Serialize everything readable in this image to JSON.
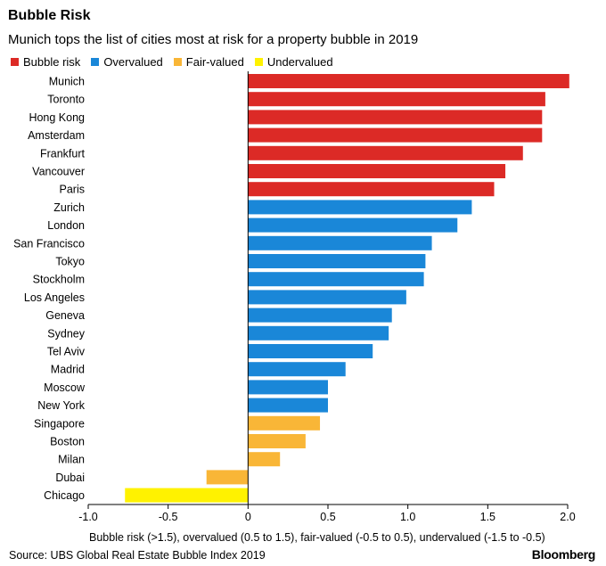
{
  "chart_data": {
    "type": "bar",
    "orientation": "horizontal",
    "title": "Bubble Risk",
    "subtitle": "Munich tops the list of cities most at risk for a property bubble in 2019",
    "categories": [
      "Munich",
      "Toronto",
      "Hong Kong",
      "Amsterdam",
      "Frankfurt",
      "Vancouver",
      "Paris",
      "Zurich",
      "London",
      "San Francisco",
      "Tokyo",
      "Stockholm",
      "Los Angeles",
      "Geneva",
      "Sydney",
      "Tel Aviv",
      "Madrid",
      "Moscow",
      "New York",
      "Singapore",
      "Boston",
      "Milan",
      "Dubai",
      "Chicago"
    ],
    "values": [
      2.01,
      1.86,
      1.84,
      1.84,
      1.72,
      1.61,
      1.54,
      1.4,
      1.31,
      1.15,
      1.11,
      1.1,
      0.99,
      0.9,
      0.88,
      0.78,
      0.61,
      0.5,
      0.5,
      0.45,
      0.36,
      0.2,
      -0.26,
      -0.77
    ],
    "groups": [
      "Bubble risk",
      "Bubble risk",
      "Bubble risk",
      "Bubble risk",
      "Bubble risk",
      "Bubble risk",
      "Bubble risk",
      "Overvalued",
      "Overvalued",
      "Overvalued",
      "Overvalued",
      "Overvalued",
      "Overvalued",
      "Overvalued",
      "Overvalued",
      "Overvalued",
      "Overvalued",
      "Overvalued",
      "Overvalued",
      "Fair-valued",
      "Fair-valued",
      "Fair-valued",
      "Fair-valued",
      "Undervalued"
    ],
    "legend": [
      {
        "name": "Bubble risk",
        "color": "#dc2a26"
      },
      {
        "name": "Overvalued",
        "color": "#1a87d8"
      },
      {
        "name": "Fair-valued",
        "color": "#f9b637"
      },
      {
        "name": "Undervalued",
        "color": "#fff200"
      }
    ],
    "xlim": [
      -1.0,
      2.0
    ],
    "xticks": [
      "-1.0",
      "-0.5",
      "0",
      "0.5",
      "1.0",
      "1.5",
      "2.0"
    ],
    "xlabel": "Bubble risk (>1.5), overvalued (0.5 to 1.5), fair-valued (-0.5 to 0.5), undervalued (-1.5 to -0.5)",
    "legend_position": "top-left",
    "grid": false
  },
  "footer": {
    "source": "Source: UBS Global Real Estate Bubble Index 2019",
    "brand": "Bloomberg"
  }
}
